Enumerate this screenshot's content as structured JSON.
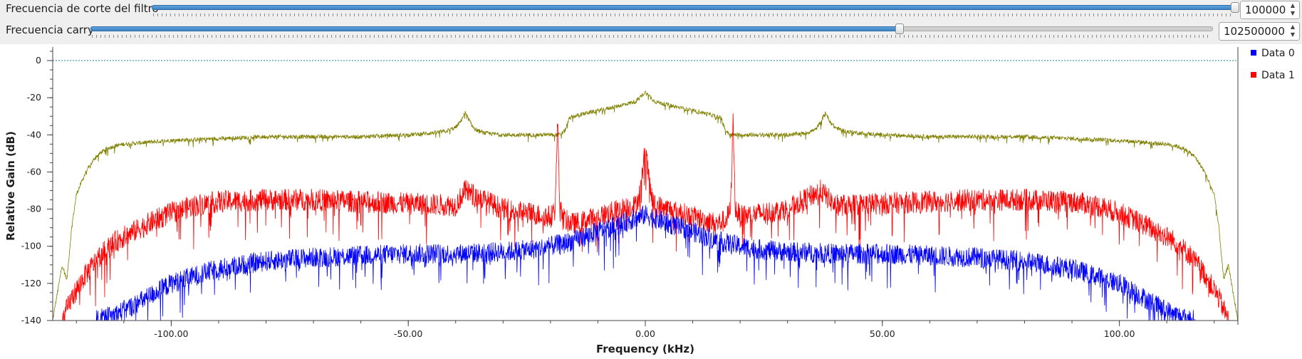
{
  "controls": [
    {
      "label": "Frecuencia de corte del filtro",
      "value": "100000",
      "level": 1.0
    },
    {
      "label": "Frecuencia carry",
      "value": "102500000",
      "level": 0.72
    }
  ],
  "icons": {
    "spin_up": "arrow-up-icon",
    "spin_down": "arrow-down-icon"
  },
  "colors": {
    "data0": "#0000ff",
    "data1": "#ff0000",
    "data2": "#808000",
    "slider_fill": "#3d82c4",
    "reference_line": "#1f7f9f"
  },
  "chart_data": {
    "type": "line",
    "xlabel": "Frequency (kHz)",
    "ylabel": "Relative Gain (dB)",
    "xlim": [
      -125,
      125
    ],
    "ylim": [
      -140,
      5
    ],
    "x_ticks": [
      "-100.00",
      "-50.00",
      "0.00",
      "50.00",
      "100.00"
    ],
    "x_tick_values": [
      -100,
      -50,
      0,
      50,
      100
    ],
    "y_ticks": [
      "0",
      "-20",
      "-40",
      "-60",
      "-80",
      "-100",
      "-120",
      "-140"
    ],
    "y_tick_values": [
      0,
      -20,
      -40,
      -60,
      -80,
      -100,
      -120,
      -140
    ],
    "reference_line_y": 0,
    "legend_position": "top-right",
    "legend": [
      {
        "label": "Data 0",
        "color": "#0000ff"
      },
      {
        "label": "Data 1",
        "color": "#ff0000"
      }
    ],
    "series": [
      {
        "color": "#808000",
        "x": [
          -125,
          -124,
          -123,
          -122,
          -121,
          -120,
          -118,
          -116,
          -114,
          -112,
          -110,
          -105,
          -100,
          -90,
          -80,
          -70,
          -60,
          -50,
          -45,
          -42,
          -40,
          -39,
          -38,
          -37,
          -36,
          -34,
          -30,
          -25,
          -20,
          -18,
          -17,
          -16,
          -15,
          -12,
          -10,
          -5,
          -2,
          0,
          2,
          5,
          10,
          12,
          15,
          16,
          17,
          18,
          20,
          25,
          30,
          34,
          36,
          37,
          38,
          39,
          40,
          42,
          45,
          50,
          60,
          70,
          80,
          90,
          100,
          105,
          110,
          112,
          114,
          116,
          118,
          120,
          121,
          122,
          123,
          124,
          125
        ],
        "y": [
          -140,
          -125,
          -110,
          -118,
          -90,
          -72,
          -60,
          -52,
          -48,
          -46,
          -45,
          -44,
          -43,
          -42,
          -41,
          -41,
          -41,
          -40,
          -39,
          -38,
          -36,
          -33,
          -28,
          -33,
          -37,
          -39,
          -40,
          -40,
          -40,
          -40,
          -38,
          -31,
          -30,
          -28,
          -27,
          -24,
          -22,
          -17,
          -22,
          -24,
          -27,
          -28,
          -30,
          -31,
          -38,
          -40,
          -40,
          -40,
          -40,
          -39,
          -37,
          -33,
          -28,
          -33,
          -36,
          -38,
          -39,
          -40,
          -41,
          -41,
          -41,
          -42,
          -43,
          -44,
          -45,
          -46,
          -48,
          -52,
          -60,
          -72,
          -90,
          -118,
          -110,
          -125,
          -140
        ]
      },
      {
        "name": "Data 1",
        "color": "#ff0000",
        "x": [
          -123,
          -121,
          -118,
          -115,
          -112,
          -110,
          -105,
          -100,
          -95,
          -90,
          -80,
          -70,
          -60,
          -50,
          -40,
          -38,
          -30,
          -25,
          -20,
          -19,
          -18.5,
          -18,
          -17,
          -15,
          -10,
          -5,
          -2,
          -1,
          0,
          1,
          2,
          5,
          10,
          15,
          17,
          18,
          18.5,
          19,
          20,
          25,
          30,
          37,
          40,
          50,
          60,
          70,
          80,
          90,
          95,
          100,
          105,
          110,
          112,
          115,
          118,
          121,
          123
        ],
        "y": [
          -140,
          -128,
          -115,
          -105,
          -98,
          -95,
          -88,
          -82,
          -78,
          -76,
          -75,
          -75,
          -76,
          -77,
          -78,
          -70,
          -80,
          -82,
          -84,
          -80,
          -32,
          -80,
          -86,
          -88,
          -84,
          -80,
          -78,
          -70,
          -46,
          -70,
          -78,
          -80,
          -84,
          -88,
          -86,
          -80,
          -32,
          -80,
          -84,
          -82,
          -80,
          -70,
          -78,
          -77,
          -76,
          -75,
          -75,
          -76,
          -78,
          -82,
          -88,
          -95,
          -98,
          -105,
          -115,
          -128,
          -140
        ]
      },
      {
        "name": "Data 0",
        "color": "#0000ff",
        "x": [
          -116,
          -112,
          -108,
          -104,
          -100,
          -95,
          -90,
          -80,
          -70,
          -60,
          -50,
          -40,
          -30,
          -25,
          -20,
          -15,
          -10,
          -5,
          -2,
          0,
          2,
          5,
          10,
          15,
          20,
          25,
          30,
          40,
          50,
          60,
          70,
          80,
          90,
          95,
          100,
          104,
          108,
          112,
          116
        ],
        "y": [
          -140,
          -137,
          -132,
          -126,
          -120,
          -116,
          -112,
          -108,
          -106,
          -105,
          -104,
          -104,
          -103,
          -102,
          -100,
          -97,
          -92,
          -88,
          -85,
          -83,
          -85,
          -88,
          -92,
          -97,
          -100,
          -102,
          -103,
          -104,
          -104,
          -105,
          -106,
          -108,
          -112,
          -116,
          -120,
          -126,
          -132,
          -137,
          -140
        ]
      }
    ]
  }
}
